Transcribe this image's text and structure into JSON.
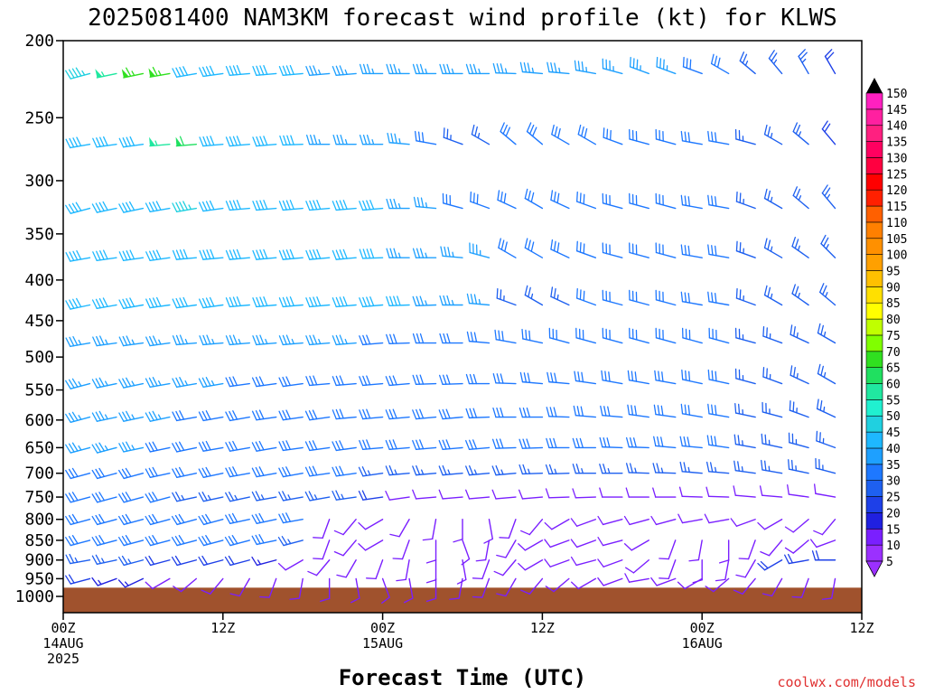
{
  "chart_data": {
    "type": "wind-barb",
    "title": "2025081400 NAM3KM forecast wind profile (kt) for KLWS",
    "xlabel": "Forecast Time (UTC)",
    "ylabel": "",
    "y_scale": "log-pressure",
    "ylim": [
      1000,
      200
    ],
    "y_ticks": [
      "200",
      "250",
      "300",
      "350",
      "400",
      "450",
      "500",
      "550",
      "600",
      "650",
      "700",
      "750",
      "800",
      "850",
      "900",
      "950",
      "1000"
    ],
    "x_ticks": [
      {
        "line1": "00Z",
        "line2": "14AUG",
        "line3": "2025"
      },
      {
        "line1": "12Z",
        "line2": "",
        "line3": ""
      },
      {
        "line1": "00Z",
        "line2": "15AUG",
        "line3": ""
      },
      {
        "line1": "12Z",
        "line2": "",
        "line3": ""
      },
      {
        "line1": "00Z",
        "line2": "16AUG",
        "line3": ""
      },
      {
        "line1": "12Z",
        "line2": "",
        "line3": ""
      }
    ],
    "x_range_hours": [
      0,
      60
    ],
    "time_step_hours": 2,
    "speed_units": "kt",
    "colorbar": {
      "levels": [
        5,
        10,
        15,
        20,
        25,
        30,
        35,
        40,
        45,
        50,
        55,
        60,
        65,
        70,
        75,
        80,
        85,
        90,
        95,
        100,
        105,
        110,
        115,
        120,
        125,
        130,
        135,
        140,
        145,
        150
      ],
      "colors": [
        "#9b30ff",
        "#7a1fff",
        "#2020e0",
        "#1e40e8",
        "#1e60f0",
        "#1e78ff",
        "#1ea0ff",
        "#1eb8ff",
        "#20d0e0",
        "#20f0d0",
        "#20e8a0",
        "#20e060",
        "#30e020",
        "#80ff00",
        "#c0ff00",
        "#ffff00",
        "#ffe000",
        "#ffc000",
        "#ffa000",
        "#ff9000",
        "#ff8000",
        "#ff6000",
        "#ff2000",
        "#ff0000",
        "#ff0040",
        "#ff0060",
        "#ff2080",
        "#ff20a0",
        "#ff20c0",
        "#ff20e0"
      ]
    },
    "levels": [
      {
        "p": 220,
        "dir": [
          255,
          255,
          258,
          258,
          260,
          260,
          262,
          265,
          265,
          265,
          265,
          265,
          270,
          270,
          270,
          270,
          270,
          272,
          275,
          275,
          280,
          285,
          290,
          290,
          290,
          300,
          310,
          320,
          330,
          330,
          335
        ],
        "spd": [
          45,
          45,
          55,
          65,
          65,
          40,
          40,
          40,
          40,
          40,
          35,
          35,
          35,
          35,
          35,
          35,
          35,
          35,
          35,
          35,
          35,
          35,
          35,
          35,
          30,
          30,
          25,
          25,
          25,
          20,
          20
        ]
      },
      {
        "p": 270,
        "dir": [
          260,
          260,
          262,
          262,
          265,
          265,
          265,
          265,
          265,
          268,
          270,
          270,
          270,
          275,
          280,
          290,
          300,
          310,
          310,
          300,
          300,
          290,
          285,
          285,
          280,
          280,
          285,
          300,
          310,
          320,
          330
        ],
        "spd": [
          40,
          40,
          40,
          40,
          55,
          60,
          40,
          40,
          40,
          40,
          35,
          35,
          35,
          35,
          30,
          25,
          25,
          30,
          30,
          30,
          30,
          30,
          30,
          30,
          30,
          30,
          25,
          25,
          25,
          20,
          20
        ]
      },
      {
        "p": 325,
        "dir": [
          255,
          255,
          258,
          258,
          260,
          260,
          262,
          265,
          265,
          265,
          265,
          265,
          265,
          270,
          275,
          285,
          290,
          295,
          300,
          295,
          290,
          285,
          285,
          285,
          280,
          280,
          290,
          300,
          310,
          320,
          325
        ],
        "spd": [
          40,
          40,
          40,
          40,
          40,
          45,
          40,
          40,
          40,
          40,
          40,
          40,
          40,
          35,
          35,
          30,
          30,
          30,
          30,
          30,
          30,
          30,
          30,
          30,
          30,
          30,
          25,
          25,
          25,
          25,
          25
        ]
      },
      {
        "p": 375,
        "dir": [
          260,
          260,
          262,
          262,
          262,
          265,
          265,
          265,
          265,
          265,
          265,
          265,
          268,
          270,
          270,
          275,
          285,
          300,
          300,
          295,
          290,
          285,
          285,
          285,
          280,
          280,
          290,
          300,
          305,
          315,
          320
        ],
        "spd": [
          40,
          40,
          40,
          40,
          40,
          40,
          40,
          40,
          40,
          40,
          40,
          40,
          40,
          35,
          35,
          35,
          35,
          30,
          30,
          30,
          30,
          30,
          30,
          30,
          30,
          30,
          25,
          25,
          25,
          25,
          25
        ]
      },
      {
        "p": 430,
        "dir": [
          258,
          258,
          260,
          260,
          262,
          262,
          262,
          265,
          265,
          265,
          265,
          265,
          265,
          268,
          268,
          270,
          275,
          290,
          300,
          295,
          290,
          285,
          285,
          285,
          280,
          280,
          290,
          300,
          305,
          310,
          315
        ],
        "spd": [
          40,
          40,
          40,
          40,
          40,
          40,
          40,
          40,
          40,
          40,
          40,
          40,
          40,
          40,
          35,
          35,
          35,
          25,
          25,
          25,
          30,
          30,
          30,
          30,
          30,
          30,
          25,
          25,
          25,
          25,
          25
        ]
      },
      {
        "p": 480,
        "dir": [
          260,
          260,
          262,
          262,
          262,
          265,
          265,
          265,
          265,
          265,
          265,
          265,
          265,
          268,
          270,
          270,
          275,
          280,
          282,
          285,
          285,
          285,
          285,
          285,
          285,
          285,
          285,
          290,
          295,
          300,
          305
        ],
        "spd": [
          35,
          35,
          35,
          35,
          35,
          35,
          35,
          35,
          35,
          35,
          35,
          35,
          30,
          30,
          30,
          30,
          30,
          30,
          30,
          30,
          30,
          30,
          30,
          30,
          30,
          30,
          25,
          25,
          25,
          25,
          30
        ]
      },
      {
        "p": 540,
        "dir": [
          255,
          255,
          258,
          258,
          260,
          260,
          260,
          262,
          262,
          262,
          265,
          265,
          265,
          265,
          268,
          268,
          270,
          272,
          275,
          275,
          278,
          280,
          280,
          280,
          282,
          282,
          285,
          290,
          295,
          300,
          305
        ],
        "spd": [
          35,
          35,
          35,
          35,
          35,
          35,
          35,
          30,
          30,
          30,
          30,
          30,
          30,
          30,
          30,
          30,
          30,
          30,
          30,
          30,
          30,
          30,
          30,
          30,
          30,
          30,
          25,
          25,
          25,
          25,
          30
        ]
      },
      {
        "p": 595,
        "dir": [
          255,
          255,
          258,
          258,
          258,
          260,
          260,
          260,
          262,
          262,
          262,
          265,
          265,
          265,
          265,
          265,
          268,
          270,
          270,
          272,
          275,
          275,
          278,
          278,
          280,
          280,
          282,
          285,
          290,
          295,
          300
        ],
        "spd": [
          35,
          35,
          35,
          35,
          35,
          30,
          30,
          30,
          30,
          30,
          30,
          30,
          30,
          30,
          30,
          30,
          30,
          30,
          30,
          30,
          30,
          30,
          30,
          30,
          30,
          30,
          25,
          25,
          25,
          25,
          30
        ]
      },
      {
        "p": 650,
        "dir": [
          255,
          255,
          255,
          258,
          258,
          258,
          260,
          260,
          260,
          262,
          262,
          262,
          265,
          265,
          265,
          265,
          265,
          268,
          268,
          270,
          270,
          272,
          272,
          275,
          275,
          278,
          280,
          282,
          285,
          290,
          295
        ],
        "spd": [
          35,
          35,
          35,
          35,
          30,
          30,
          30,
          30,
          30,
          30,
          30,
          30,
          30,
          30,
          30,
          30,
          30,
          30,
          30,
          30,
          30,
          30,
          30,
          30,
          30,
          30,
          25,
          25,
          25,
          25,
          25
        ]
      },
      {
        "p": 700,
        "dir": [
          255,
          255,
          255,
          255,
          258,
          258,
          258,
          260,
          260,
          260,
          262,
          262,
          262,
          265,
          265,
          265,
          265,
          265,
          268,
          268,
          270,
          270,
          272,
          272,
          275,
          275,
          278,
          280,
          282,
          285,
          290
        ],
        "spd": [
          30,
          30,
          30,
          30,
          30,
          30,
          30,
          30,
          30,
          30,
          30,
          30,
          25,
          25,
          25,
          25,
          25,
          25,
          25,
          25,
          25,
          25,
          25,
          25,
          25,
          25,
          25,
          25,
          25,
          25,
          25
        ]
      },
      {
        "p": 750,
        "dir": [
          255,
          255,
          255,
          255,
          255,
          258,
          258,
          258,
          260,
          260,
          260,
          262,
          262,
          262,
          265,
          265,
          265,
          265,
          265,
          268,
          268,
          270,
          270,
          270,
          272,
          272,
          275,
          275,
          278,
          280,
          285
        ],
        "spd": [
          30,
          30,
          30,
          30,
          30,
          25,
          25,
          25,
          25,
          25,
          25,
          25,
          20,
          10,
          10,
          10,
          10,
          10,
          10,
          10,
          10,
          10,
          10,
          10,
          10,
          10,
          10,
          10,
          10,
          10,
          25
        ]
      },
      {
        "p": 800,
        "dir": [
          255,
          255,
          255,
          255,
          255,
          255,
          255,
          258,
          258,
          260,
          200,
          220,
          240,
          210,
          190,
          180,
          170,
          200,
          220,
          240,
          250,
          255,
          255,
          255,
          260,
          260,
          250,
          240,
          230,
          220,
          210
        ],
        "spd": [
          30,
          30,
          30,
          30,
          30,
          30,
          30,
          30,
          30,
          30,
          10,
          10,
          10,
          10,
          10,
          10,
          10,
          10,
          10,
          10,
          10,
          10,
          10,
          10,
          10,
          10,
          10,
          10,
          10,
          10,
          10
        ]
      },
      {
        "p": 850,
        "dir": [
          255,
          255,
          255,
          255,
          255,
          255,
          255,
          255,
          258,
          255,
          200,
          220,
          240,
          200,
          180,
          160,
          190,
          210,
          240,
          250,
          250,
          255,
          240,
          200,
          190,
          180,
          200,
          220,
          230,
          250,
          260
        ],
        "spd": [
          30,
          30,
          30,
          30,
          30,
          30,
          30,
          30,
          30,
          25,
          10,
          10,
          10,
          10,
          10,
          10,
          10,
          10,
          10,
          10,
          10,
          10,
          10,
          10,
          10,
          10,
          10,
          10,
          10,
          10,
          10
        ]
      },
      {
        "p": 900,
        "dir": [
          260,
          260,
          258,
          255,
          255,
          255,
          255,
          255,
          255,
          240,
          220,
          210,
          200,
          190,
          180,
          170,
          200,
          220,
          240,
          250,
          255,
          250,
          230,
          200,
          180,
          190,
          210,
          240,
          260,
          270,
          270
        ],
        "spd": [
          25,
          25,
          25,
          25,
          20,
          20,
          20,
          20,
          15,
          10,
          10,
          10,
          10,
          10,
          10,
          10,
          10,
          10,
          10,
          10,
          10,
          10,
          10,
          10,
          10,
          10,
          10,
          20,
          20,
          20,
          20
        ]
      },
      {
        "p": 950,
        "dir": [
          255,
          255,
          250,
          245,
          240,
          230,
          220,
          210,
          200,
          190,
          180,
          170,
          160,
          170,
          180,
          190,
          200,
          210,
          220,
          230,
          240,
          250,
          260,
          250,
          240,
          230,
          220,
          210,
          200,
          190,
          180
        ],
        "spd": [
          20,
          20,
          15,
          15,
          10,
          10,
          10,
          10,
          10,
          10,
          10,
          10,
          10,
          10,
          10,
          10,
          10,
          10,
          10,
          10,
          10,
          10,
          10,
          10,
          10,
          10,
          10,
          10,
          10,
          10,
          10
        ]
      }
    ],
    "terrain_pressure": 975,
    "terrain_color": "#a0522d"
  },
  "credit": "coolwx.com/models"
}
